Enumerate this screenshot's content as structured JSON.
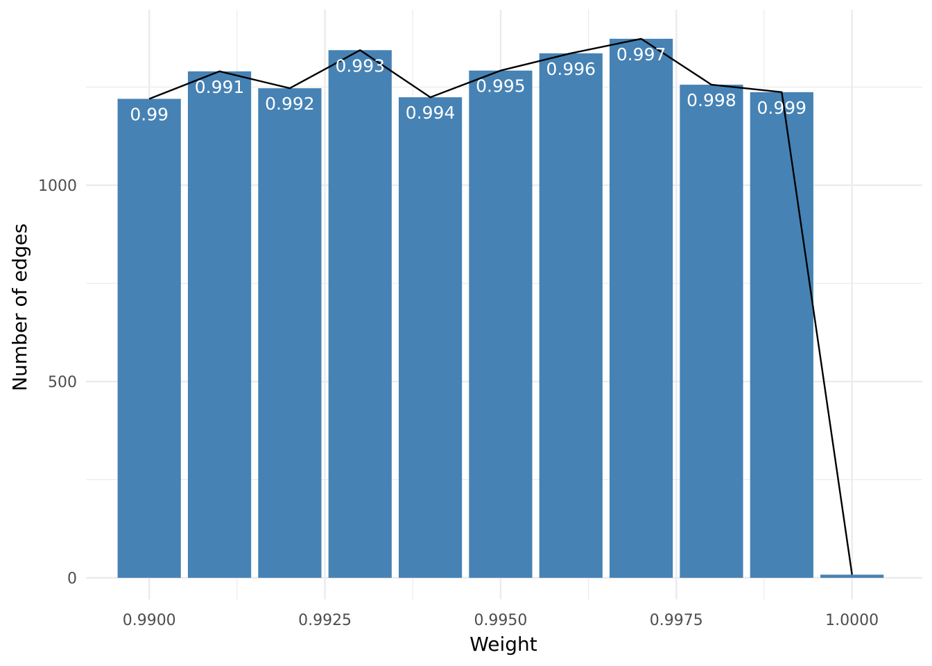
{
  "chart_data": {
    "type": "bar",
    "xlabel": "Weight",
    "ylabel": "Number of edges",
    "xlim": [
      0.9891,
      1.001
    ],
    "ylim": [
      -55,
      1447
    ],
    "bar_width": 0.0009,
    "x_ticks": [
      {
        "value": 0.99,
        "label": "0.9900"
      },
      {
        "value": 0.9925,
        "label": "0.9925"
      },
      {
        "value": 0.995,
        "label": "0.9950"
      },
      {
        "value": 0.9975,
        "label": "0.9975"
      },
      {
        "value": 1.0,
        "label": "1.0000"
      }
    ],
    "x_minor_ticks": [
      0.99125,
      0.99375,
      0.99625,
      0.99875
    ],
    "y_ticks": [
      {
        "value": 0,
        "label": "0"
      },
      {
        "value": 500,
        "label": "500"
      },
      {
        "value": 1000,
        "label": "1000"
      }
    ],
    "y_minor_ticks": [
      250,
      750,
      1250
    ],
    "grid": true,
    "colors": {
      "bar": "#4682b4",
      "line": "#000000",
      "grid": "#ebebeb",
      "label": "#ffffff"
    },
    "bars": [
      {
        "x": 0.99,
        "value": 1220,
        "label": "0.99"
      },
      {
        "x": 0.991,
        "value": 1290,
        "label": "0.991"
      },
      {
        "x": 0.992,
        "value": 1247,
        "label": "0.992"
      },
      {
        "x": 0.993,
        "value": 1344,
        "label": "0.993"
      },
      {
        "x": 0.994,
        "value": 1224,
        "label": "0.994"
      },
      {
        "x": 0.995,
        "value": 1292,
        "label": "0.995"
      },
      {
        "x": 0.996,
        "value": 1336,
        "label": "0.996"
      },
      {
        "x": 0.997,
        "value": 1373,
        "label": "0.997"
      },
      {
        "x": 0.998,
        "value": 1256,
        "label": "0.998"
      },
      {
        "x": 0.999,
        "value": 1237,
        "label": "0.999"
      },
      {
        "x": 1.0,
        "value": 8,
        "label": ""
      }
    ]
  }
}
